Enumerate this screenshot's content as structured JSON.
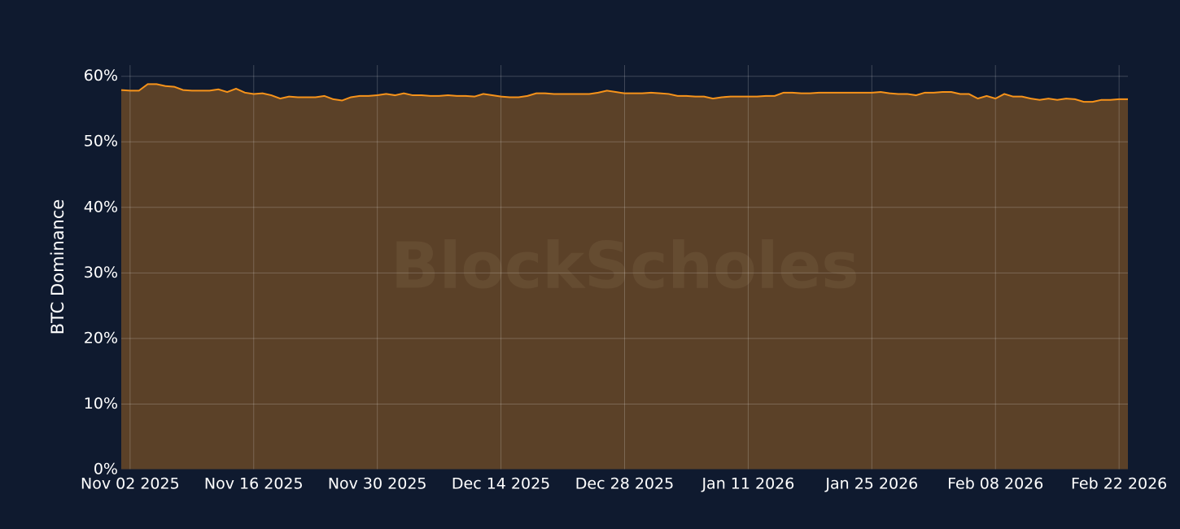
{
  "chart_data": {
    "type": "area",
    "watermark": "BlockScholes",
    "y_label": "BTC Dominance",
    "color": "#f7931a",
    "grid": true,
    "x": [
      "2025-11-01",
      "2025-11-02",
      "2025-11-03",
      "2025-11-04",
      "2025-11-05",
      "2025-11-06",
      "2025-11-07",
      "2025-11-08",
      "2025-11-09",
      "2025-11-10",
      "2025-11-11",
      "2025-11-12",
      "2025-11-13",
      "2025-11-14",
      "2025-11-15",
      "2025-11-16",
      "2025-11-17",
      "2025-11-18",
      "2025-11-19",
      "2025-11-20",
      "2025-11-21",
      "2025-11-22",
      "2025-11-23",
      "2025-11-24",
      "2025-11-25",
      "2025-11-26",
      "2025-11-27",
      "2025-11-28",
      "2025-11-29",
      "2025-11-30",
      "2025-12-01",
      "2025-12-02",
      "2025-12-03",
      "2025-12-04",
      "2025-12-05",
      "2025-12-06",
      "2025-12-07",
      "2025-12-08",
      "2025-12-09",
      "2025-12-10",
      "2025-12-11",
      "2025-12-12",
      "2025-12-13",
      "2025-12-14",
      "2025-12-15",
      "2025-12-16",
      "2025-12-17",
      "2025-12-18",
      "2025-12-19",
      "2025-12-20",
      "2025-12-21",
      "2025-12-22",
      "2025-12-23",
      "2025-12-24",
      "2025-12-25",
      "2025-12-26",
      "2025-12-27",
      "2025-12-28",
      "2025-12-29",
      "2025-12-30",
      "2025-12-31",
      "2026-01-01",
      "2026-01-02",
      "2026-01-03",
      "2026-01-04",
      "2026-01-05",
      "2026-01-06",
      "2026-01-07",
      "2026-01-08",
      "2026-01-09",
      "2026-01-10",
      "2026-01-11",
      "2026-01-12",
      "2026-01-13",
      "2026-01-14",
      "2026-01-15",
      "2026-01-16",
      "2026-01-17",
      "2026-01-18",
      "2026-01-19",
      "2026-01-20",
      "2026-01-21",
      "2026-01-22",
      "2026-01-23",
      "2026-01-24",
      "2026-01-25",
      "2026-01-26",
      "2026-01-27",
      "2026-01-28",
      "2026-01-29",
      "2026-01-30",
      "2026-01-31",
      "2026-02-01",
      "2026-02-02",
      "2026-02-03",
      "2026-02-04",
      "2026-02-05",
      "2026-02-06",
      "2026-02-07",
      "2026-02-08",
      "2026-02-09",
      "2026-02-10",
      "2026-02-11",
      "2026-02-12",
      "2026-02-13",
      "2026-02-14",
      "2026-02-15",
      "2026-02-16",
      "2026-02-17",
      "2026-02-18",
      "2026-02-19",
      "2026-02-20",
      "2026-02-21",
      "2026-02-22",
      "2026-02-23"
    ],
    "values": [
      57.9,
      57.8,
      57.8,
      58.8,
      58.8,
      58.5,
      58.4,
      57.9,
      57.8,
      57.8,
      57.8,
      58.0,
      57.6,
      58.1,
      57.5,
      57.3,
      57.4,
      57.1,
      56.6,
      56.9,
      56.8,
      56.8,
      56.8,
      57.0,
      56.5,
      56.3,
      56.8,
      57.0,
      57.0,
      57.1,
      57.3,
      57.1,
      57.4,
      57.1,
      57.1,
      57.0,
      57.0,
      57.1,
      57.0,
      57.0,
      56.9,
      57.3,
      57.1,
      56.9,
      56.8,
      56.8,
      57.0,
      57.4,
      57.4,
      57.3,
      57.3,
      57.3,
      57.3,
      57.3,
      57.5,
      57.8,
      57.6,
      57.4,
      57.4,
      57.4,
      57.5,
      57.4,
      57.3,
      57.0,
      57.0,
      56.9,
      56.9,
      56.6,
      56.8,
      56.9,
      56.9,
      56.9,
      56.9,
      57.0,
      57.0,
      57.5,
      57.5,
      57.4,
      57.4,
      57.5,
      57.5,
      57.5,
      57.5,
      57.5,
      57.5,
      57.5,
      57.6,
      57.4,
      57.3,
      57.3,
      57.1,
      57.5,
      57.5,
      57.6,
      57.6,
      57.3,
      57.3,
      56.6,
      57.0,
      56.6,
      57.3,
      56.9,
      56.9,
      56.6,
      56.4,
      56.6,
      56.4,
      56.6,
      56.5,
      56.1,
      56.1,
      56.4,
      56.4,
      56.5,
      56.5
    ],
    "xlim": [
      "2025-11-01",
      "2026-02-23"
    ],
    "xticks": [
      {
        "value": "2025-11-02",
        "label": "Nov 02 2025"
      },
      {
        "value": "2025-11-16",
        "label": "Nov 16 2025"
      },
      {
        "value": "2025-11-30",
        "label": "Nov 30 2025"
      },
      {
        "value": "2025-12-14",
        "label": "Dec 14 2025"
      },
      {
        "value": "2025-12-28",
        "label": "Dec 28 2025"
      },
      {
        "value": "2026-01-11",
        "label": "Jan 11 2026"
      },
      {
        "value": "2026-01-25",
        "label": "Jan 25 2026"
      },
      {
        "value": "2026-02-08",
        "label": "Feb 08 2026"
      },
      {
        "value": "2026-02-22",
        "label": "Feb 22 2026"
      }
    ],
    "ylim": [
      0,
      61.7
    ],
    "yticks": [
      {
        "value": 0,
        "label": "0%"
      },
      {
        "value": 10,
        "label": "10%"
      },
      {
        "value": 20,
        "label": "20%"
      },
      {
        "value": 30,
        "label": "30%"
      },
      {
        "value": 40,
        "label": "40%"
      },
      {
        "value": 50,
        "label": "50%"
      },
      {
        "value": 60,
        "label": "60%"
      }
    ]
  }
}
